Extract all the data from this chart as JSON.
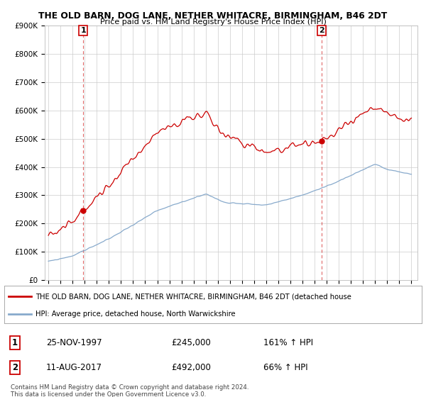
{
  "title": "THE OLD BARN, DOG LANE, NETHER WHITACRE, BIRMINGHAM, B46 2DT",
  "subtitle": "Price paid vs. HM Land Registry's House Price Index (HPI)",
  "sale1_label": "1",
  "sale1_date": "25-NOV-1997",
  "sale1_price": 245000,
  "sale1_price_str": "£245,000",
  "sale1_hpi_str": "161% ↑ HPI",
  "sale2_label": "2",
  "sale2_date": "11-AUG-2017",
  "sale2_price": 492000,
  "sale2_price_str": "£492,000",
  "sale2_hpi_str": "66% ↑ HPI",
  "legend_label1": "THE OLD BARN, DOG LANE, NETHER WHITACRE, BIRMINGHAM, B46 2DT (detached house",
  "legend_label2": "HPI: Average price, detached house, North Warwickshire",
  "footer": "Contains HM Land Registry data © Crown copyright and database right 2024.\nThis data is licensed under the Open Government Licence v3.0.",
  "house_color": "#cc0000",
  "hpi_color": "#88aacc",
  "ylim_max": 900000,
  "background_color": "#ffffff",
  "grid_color": "#cccccc",
  "sale1_x": 1997.875,
  "sale2_x": 2017.583
}
